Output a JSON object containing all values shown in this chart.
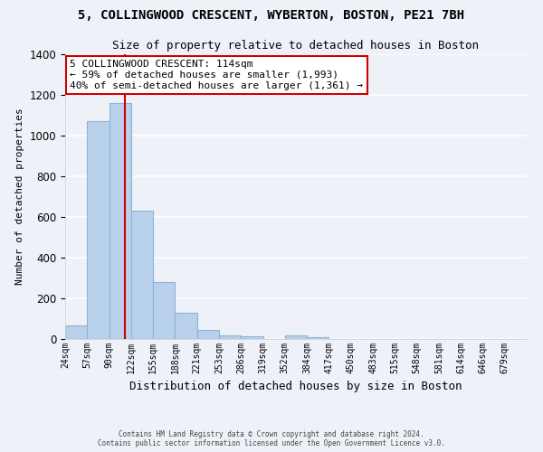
{
  "title_line1": "5, COLLINGWOOD CRESCENT, WYBERTON, BOSTON, PE21 7BH",
  "title_line2": "Size of property relative to detached houses in Boston",
  "xlabel": "Distribution of detached houses by size in Boston",
  "ylabel": "Number of detached properties",
  "bar_labels": [
    "24sqm",
    "57sqm",
    "90sqm",
    "122sqm",
    "155sqm",
    "188sqm",
    "221sqm",
    "253sqm",
    "286sqm",
    "319sqm",
    "352sqm",
    "384sqm",
    "417sqm",
    "450sqm",
    "483sqm",
    "515sqm",
    "548sqm",
    "581sqm",
    "614sqm",
    "646sqm",
    "679sqm"
  ],
  "bar_values": [
    65,
    1070,
    1160,
    630,
    280,
    130,
    45,
    20,
    15,
    0,
    20,
    10,
    0,
    0,
    0,
    0,
    0,
    0,
    0,
    0,
    0
  ],
  "bar_color": "#b8d0ea",
  "bar_edge_color": "#8ab4d8",
  "vline_x_sqm": 114,
  "vline_color": "#cc0000",
  "ylim": [
    0,
    1400
  ],
  "yticks": [
    0,
    200,
    400,
    600,
    800,
    1000,
    1200,
    1400
  ],
  "bin_size_sqm": 33,
  "first_bin_sqm": 24,
  "annotation_text_line1": "5 COLLINGWOOD CRESCENT: 114sqm",
  "annotation_text_line2": "← 59% of detached houses are smaller (1,993)",
  "annotation_text_line3": "40% of semi-detached houses are larger (1,361) →",
  "annotation_box_color": "#ffffff",
  "annotation_border_color": "#cc0000",
  "background_color": "#eef2f8",
  "grid_color": "#ffffff",
  "footer_line1": "Contains HM Land Registry data © Crown copyright and database right 2024.",
  "footer_line2": "Contains public sector information licensed under the Open Government Licence v3.0."
}
